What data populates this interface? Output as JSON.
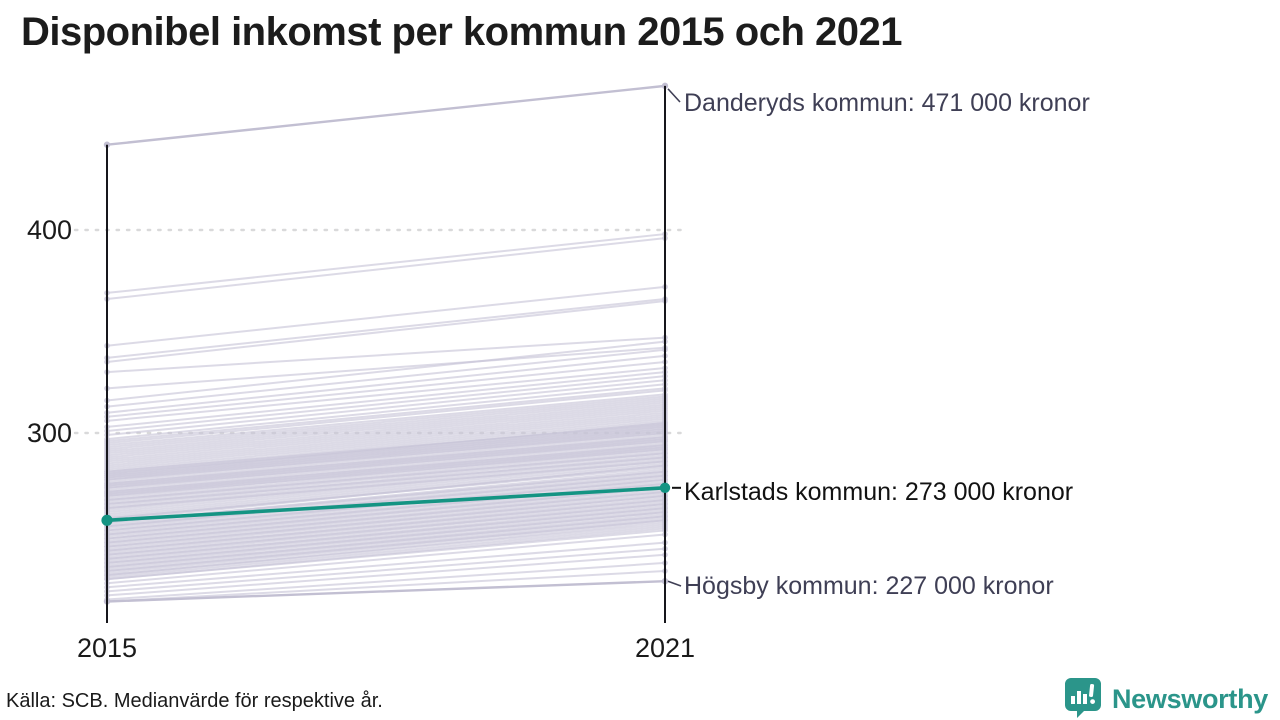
{
  "title": "Disponibel inkomst per kommun 2015 och 2021",
  "source": "Källa: SCB. Medianvärde för respektive år.",
  "branding": {
    "name": "Newsworthy",
    "icon": "newsworthy-bar-chart-speech-bubble-icon",
    "color": "#2b958a"
  },
  "chart_data": {
    "type": "line",
    "variant": "slope",
    "title": "Disponibel inkomst per kommun 2015 och 2021",
    "unit": "tusen kronor",
    "x_categories": [
      "2015",
      "2021"
    ],
    "y_axis": {
      "ticks": [
        {
          "label": "400",
          "value": 400
        },
        {
          "label": "300",
          "value": 300
        }
      ],
      "range_shown": [
        210,
        475
      ],
      "gridlines": "dotted-horizontal"
    },
    "legend": "none",
    "highlighted": [
      {
        "name": "Danderyds kommun",
        "label": "Danderyds kommun: 471 000 kronor",
        "values": [
          442,
          471
        ],
        "emphasis": "secondary",
        "color": "#c2bfd2",
        "label_color": "#3f3f55"
      },
      {
        "name": "Karlstads kommun",
        "label": "Karlstads kommun: 273 000 kronor",
        "values": [
          257,
          273
        ],
        "emphasis": "primary",
        "color": "#149483",
        "label_color": "#121212"
      },
      {
        "name": "Högsby kommun",
        "label": "Högsby kommun: 227 000 kronor",
        "values": [
          217,
          227
        ],
        "emphasis": "secondary",
        "color": "#c2bfd2",
        "label_color": "#3f3f55"
      }
    ],
    "background_series_color": "#c7c4d6",
    "background_series": [
      [
        369,
        398
      ],
      [
        366,
        396
      ],
      [
        343,
        372
      ],
      [
        337,
        366
      ],
      [
        335,
        365
      ],
      [
        330,
        347
      ],
      [
        322,
        342
      ],
      [
        316,
        345
      ],
      [
        313,
        341
      ],
      [
        310,
        338
      ],
      [
        308,
        335
      ],
      [
        306,
        332
      ],
      [
        303,
        330
      ],
      [
        301,
        328
      ],
      [
        299,
        326
      ],
      [
        297,
        324
      ],
      [
        296,
        322
      ],
      [
        295,
        321
      ],
      [
        294,
        319
      ],
      [
        293,
        318
      ],
      [
        292,
        317
      ],
      [
        291,
        316
      ],
      [
        290,
        315
      ],
      [
        289,
        314
      ],
      [
        288,
        313
      ],
      [
        287,
        312
      ],
      [
        286,
        311
      ],
      [
        285,
        310
      ],
      [
        284,
        309
      ],
      [
        283,
        308
      ],
      [
        282,
        307
      ],
      [
        281,
        306
      ],
      [
        280,
        305
      ],
      [
        280,
        303
      ],
      [
        281,
        304
      ],
      [
        279,
        305
      ],
      [
        278,
        304
      ],
      [
        277,
        303
      ],
      [
        276,
        302
      ],
      [
        275,
        301
      ],
      [
        274,
        300
      ],
      [
        273,
        299
      ],
      [
        272,
        298
      ],
      [
        271,
        297
      ],
      [
        270,
        296
      ],
      [
        269,
        295
      ],
      [
        268,
        294
      ],
      [
        267,
        293
      ],
      [
        266,
        292
      ],
      [
        265,
        291
      ],
      [
        264,
        290
      ],
      [
        263,
        289
      ],
      [
        262,
        288
      ],
      [
        279,
        302
      ],
      [
        277,
        300
      ],
      [
        275,
        298
      ],
      [
        273,
        296
      ],
      [
        271,
        294
      ],
      [
        269,
        292
      ],
      [
        267,
        290
      ],
      [
        265,
        288
      ],
      [
        263,
        286
      ],
      [
        278,
        301
      ],
      [
        274,
        297
      ],
      [
        270,
        293
      ],
      [
        261,
        287
      ],
      [
        260,
        286
      ],
      [
        259,
        285
      ],
      [
        258,
        284
      ],
      [
        258,
        283
      ],
      [
        257,
        284
      ],
      [
        256,
        282
      ],
      [
        256,
        281
      ],
      [
        255,
        281
      ],
      [
        254,
        280
      ],
      [
        254,
        279
      ],
      [
        253,
        279
      ],
      [
        252,
        278
      ],
      [
        252,
        277
      ],
      [
        251,
        277
      ],
      [
        250,
        276
      ],
      [
        250,
        275
      ],
      [
        249,
        275
      ],
      [
        248,
        274
      ],
      [
        248,
        273
      ],
      [
        247,
        273
      ],
      [
        246,
        272
      ],
      [
        246,
        271
      ],
      [
        245,
        271
      ],
      [
        244,
        270
      ],
      [
        244,
        269
      ],
      [
        243,
        269
      ],
      [
        242,
        268
      ],
      [
        242,
        267
      ],
      [
        241,
        267
      ],
      [
        240,
        266
      ],
      [
        240,
        265
      ],
      [
        239,
        265
      ],
      [
        238,
        264
      ],
      [
        238,
        263
      ],
      [
        237,
        263
      ],
      [
        236,
        262
      ],
      [
        236,
        261
      ],
      [
        235,
        261
      ],
      [
        234,
        260
      ],
      [
        234,
        259
      ],
      [
        233,
        259
      ],
      [
        232,
        258
      ],
      [
        232,
        257
      ],
      [
        231,
        257
      ],
      [
        230,
        256
      ],
      [
        230,
        255
      ],
      [
        229,
        254
      ],
      [
        228,
        253
      ],
      [
        228,
        252
      ],
      [
        226,
        250
      ],
      [
        224,
        246
      ],
      [
        222,
        243
      ],
      [
        220,
        240
      ],
      [
        218,
        236
      ],
      [
        217,
        232
      ]
    ]
  }
}
